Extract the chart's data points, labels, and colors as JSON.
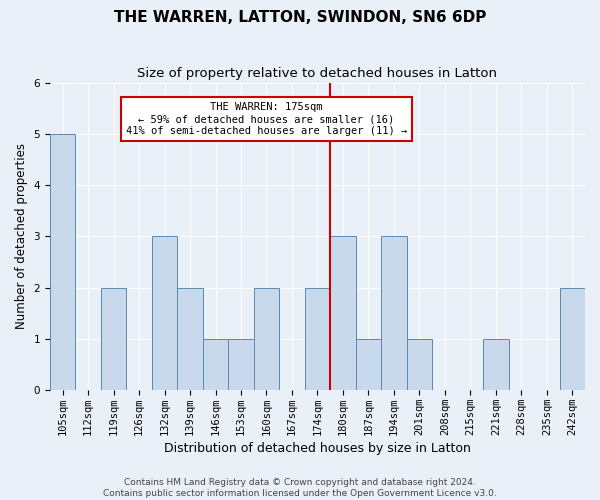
{
  "title": "THE WARREN, LATTON, SWINDON, SN6 6DP",
  "subtitle": "Size of property relative to detached houses in Latton",
  "xlabel": "Distribution of detached houses by size in Latton",
  "ylabel": "Number of detached properties",
  "bins": [
    "105sqm",
    "112sqm",
    "119sqm",
    "126sqm",
    "132sqm",
    "139sqm",
    "146sqm",
    "153sqm",
    "160sqm",
    "167sqm",
    "174sqm",
    "180sqm",
    "187sqm",
    "194sqm",
    "201sqm",
    "208sqm",
    "215sqm",
    "221sqm",
    "228sqm",
    "235sqm",
    "242sqm"
  ],
  "values": [
    5,
    0,
    2,
    0,
    3,
    2,
    1,
    1,
    2,
    0,
    2,
    3,
    1,
    3,
    1,
    0,
    0,
    1,
    0,
    0,
    2
  ],
  "bar_color": "#c9d9ec",
  "bar_edge_color": "#5a8ab0",
  "subject_bin_index": 10,
  "subject_line_label": "THE WARREN: 175sqm",
  "annotation_line1": "← 59% of detached houses are smaller (16)",
  "annotation_line2": "41% of semi-detached houses are larger (11) →",
  "annotation_box_color": "#ffffff",
  "annotation_box_edge": "#cc0000",
  "vline_color": "#cc0000",
  "ylim": [
    0,
    6
  ],
  "yticks": [
    0,
    1,
    2,
    3,
    4,
    5,
    6
  ],
  "footer1": "Contains HM Land Registry data © Crown copyright and database right 2024.",
  "footer2": "Contains public sector information licensed under the Open Government Licence v3.0.",
  "title_fontsize": 11,
  "subtitle_fontsize": 9.5,
  "xlabel_fontsize": 9,
  "ylabel_fontsize": 8.5,
  "tick_fontsize": 7.5,
  "annotation_fontsize": 7.5,
  "footer_fontsize": 6.5,
  "background_color": "#eaf0f8"
}
